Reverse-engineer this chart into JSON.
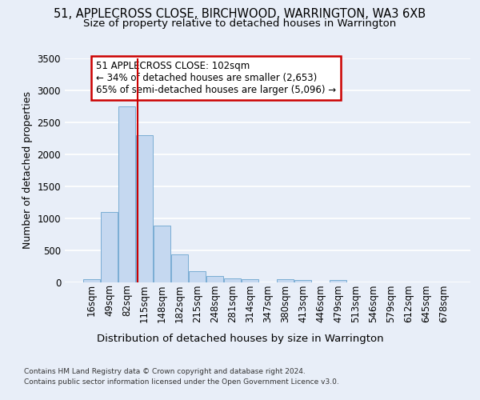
{
  "title_line1": "51, APPLECROSS CLOSE, BIRCHWOOD, WARRINGTON, WA3 6XB",
  "title_line2": "Size of property relative to detached houses in Warrington",
  "xlabel": "Distribution of detached houses by size in Warrington",
  "ylabel": "Number of detached properties",
  "categories": [
    "16sqm",
    "49sqm",
    "82sqm",
    "115sqm",
    "148sqm",
    "182sqm",
    "215sqm",
    "248sqm",
    "281sqm",
    "314sqm",
    "347sqm",
    "380sqm",
    "413sqm",
    "446sqm",
    "479sqm",
    "513sqm",
    "546sqm",
    "579sqm",
    "612sqm",
    "645sqm",
    "678sqm"
  ],
  "values": [
    50,
    1100,
    2750,
    2300,
    880,
    430,
    170,
    100,
    55,
    40,
    0,
    45,
    30,
    0,
    30,
    0,
    0,
    0,
    0,
    0,
    0
  ],
  "bar_color": "#c5d8f0",
  "bar_edge_color": "#7aadd4",
  "vline_color": "#cc0000",
  "annotation_text": "51 APPLECROSS CLOSE: 102sqm\n← 34% of detached houses are smaller (2,653)\n65% of semi-detached houses are larger (5,096) →",
  "annotation_box_facecolor": "#ffffff",
  "annotation_box_edgecolor": "#cc0000",
  "ylim": [
    0,
    3500
  ],
  "yticks": [
    0,
    500,
    1000,
    1500,
    2000,
    2500,
    3000,
    3500
  ],
  "bg_color": "#e8eef8",
  "grid_color": "#ffffff",
  "footer_line1": "Contains HM Land Registry data © Crown copyright and database right 2024.",
  "footer_line2": "Contains public sector information licensed under the Open Government Licence v3.0."
}
